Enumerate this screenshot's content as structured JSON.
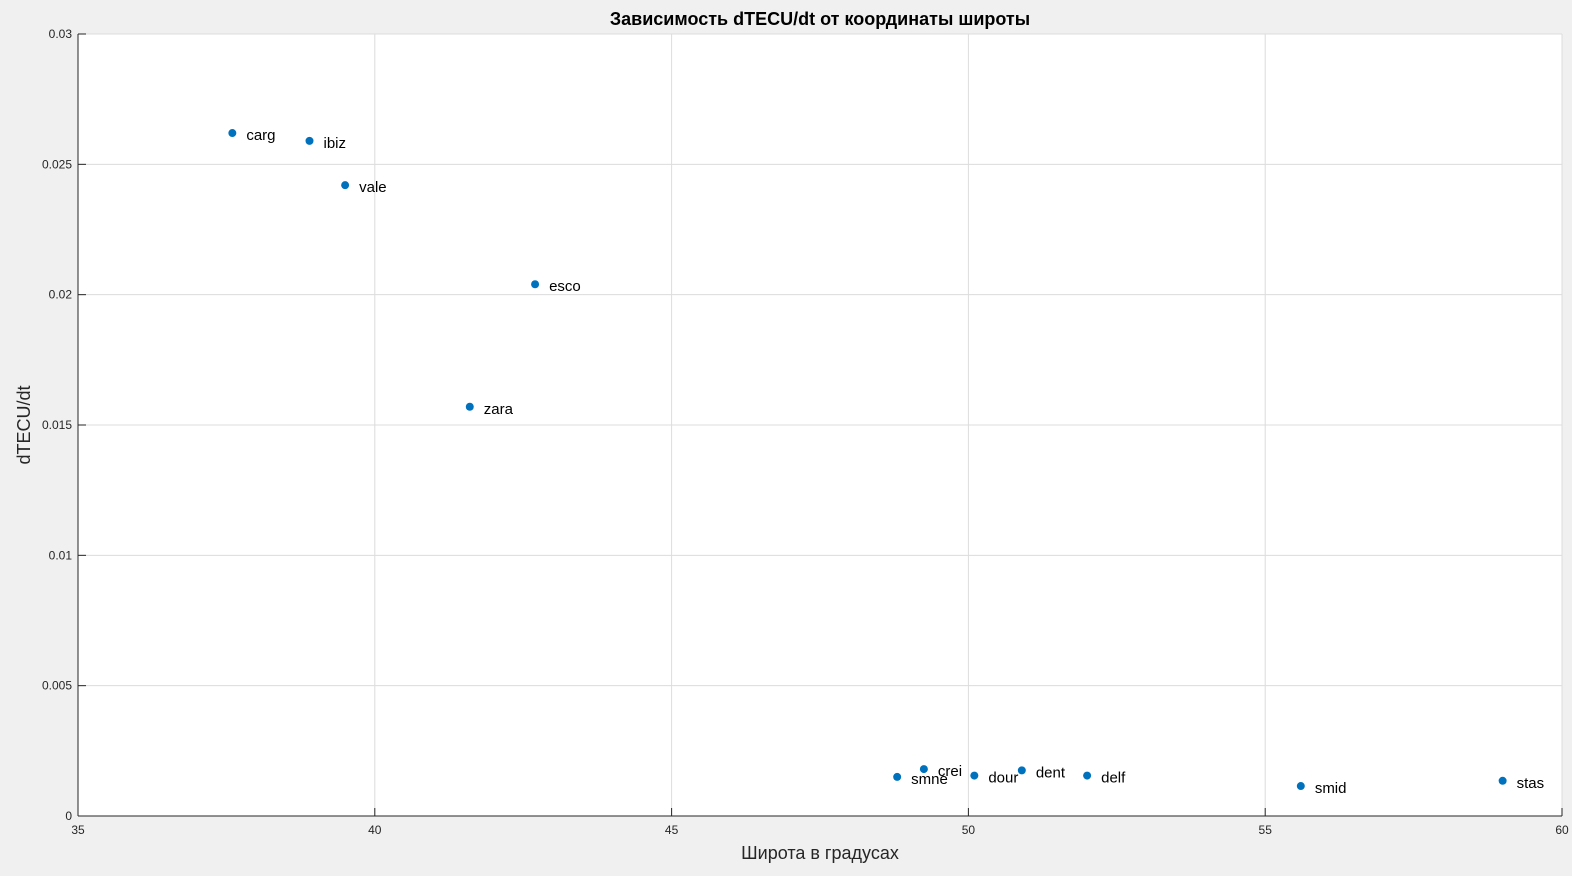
{
  "chart_data": {
    "type": "scatter",
    "title": "Зависимость dTECU/dt от координаты широты",
    "xlabel": "Широта в градусах",
    "ylabel": "dTECU/dt",
    "xlim": [
      35,
      60
    ],
    "ylim": [
      0,
      0.03
    ],
    "xticks": [
      "35",
      "40",
      "45",
      "50",
      "55",
      "60"
    ],
    "yticks": [
      "0",
      "0.005",
      "0.01",
      "0.015",
      "0.02",
      "0.025",
      "0.03"
    ],
    "grid": true,
    "marker_color": "#0072bd",
    "points": [
      {
        "label": "carg",
        "x": 37.6,
        "y": 0.0262
      },
      {
        "label": "ibiz",
        "x": 38.9,
        "y": 0.0259
      },
      {
        "label": "vale",
        "x": 39.5,
        "y": 0.0242
      },
      {
        "label": "esco",
        "x": 42.7,
        "y": 0.0204
      },
      {
        "label": "zara",
        "x": 41.6,
        "y": 0.0157
      },
      {
        "label": "smne",
        "x": 48.8,
        "y": 0.0015
      },
      {
        "label": "crei",
        "x": 49.25,
        "y": 0.0018
      },
      {
        "label": "dour",
        "x": 50.1,
        "y": 0.00155
      },
      {
        "label": "dent",
        "x": 50.9,
        "y": 0.00175
      },
      {
        "label": "delf",
        "x": 52.0,
        "y": 0.00155
      },
      {
        "label": "smid",
        "x": 55.6,
        "y": 0.00115
      },
      {
        "label": "stas",
        "x": 59.0,
        "y": 0.00135
      }
    ]
  }
}
